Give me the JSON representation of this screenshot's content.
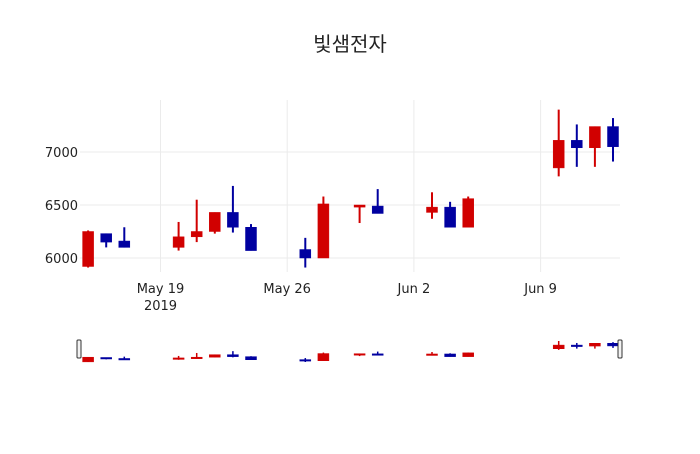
{
  "chart_data": {
    "type": "candlestick",
    "title": "빛샘전자",
    "xlabel": "",
    "ylabel": "",
    "ylim": [
      5850,
      7450
    ],
    "yticks": [
      6000,
      6500,
      7000
    ],
    "xticks": [
      {
        "date": "2019-05-19",
        "label": "May 19",
        "sublabel": "2019"
      },
      {
        "date": "2019-05-26",
        "label": "May 26",
        "sublabel": ""
      },
      {
        "date": "2019-06-02",
        "label": "Jun 2",
        "sublabel": ""
      },
      {
        "date": "2019-06-09",
        "label": "Jun 9",
        "sublabel": ""
      }
    ],
    "xrange": [
      "2019-05-14",
      "2019-06-13.9"
    ],
    "grid": true,
    "increasing_color": "#d10000",
    "decreasing_color": "#0000a0",
    "rangeslider": true,
    "x": [
      "2019-05-15",
      "2019-05-16",
      "2019-05-17",
      "2019-05-20",
      "2019-05-21",
      "2019-05-22",
      "2019-05-23",
      "2019-05-24",
      "2019-05-27",
      "2019-05-28",
      "2019-05-30",
      "2019-05-31",
      "2019-06-03",
      "2019-06-04",
      "2019-06-05",
      "2019-06-10",
      "2019-06-11",
      "2019-06-12",
      "2019-06-13"
    ],
    "open": [
      5920,
      6230,
      6160,
      6100,
      6200,
      6250,
      6430,
      6290,
      6080,
      6000,
      6480,
      6490,
      6430,
      6480,
      6290,
      6850,
      7110,
      7040,
      7240
    ],
    "high": [
      6260,
      6230,
      6290,
      6340,
      6550,
      6430,
      6680,
      6320,
      6190,
      6580,
      6500,
      6650,
      6620,
      6530,
      6580,
      7400,
      7260,
      7240,
      7320
    ],
    "low": [
      5910,
      6100,
      6100,
      6070,
      6150,
      6230,
      6240,
      6070,
      5910,
      6000,
      6330,
      6420,
      6370,
      6290,
      6290,
      6770,
      6860,
      6860,
      6910
    ],
    "close": [
      6250,
      6150,
      6100,
      6200,
      6250,
      6430,
      6290,
      6070,
      6000,
      6510,
      6500,
      6420,
      6480,
      6290,
      6560,
      7110,
      7040,
      7240,
      7050
    ]
  }
}
